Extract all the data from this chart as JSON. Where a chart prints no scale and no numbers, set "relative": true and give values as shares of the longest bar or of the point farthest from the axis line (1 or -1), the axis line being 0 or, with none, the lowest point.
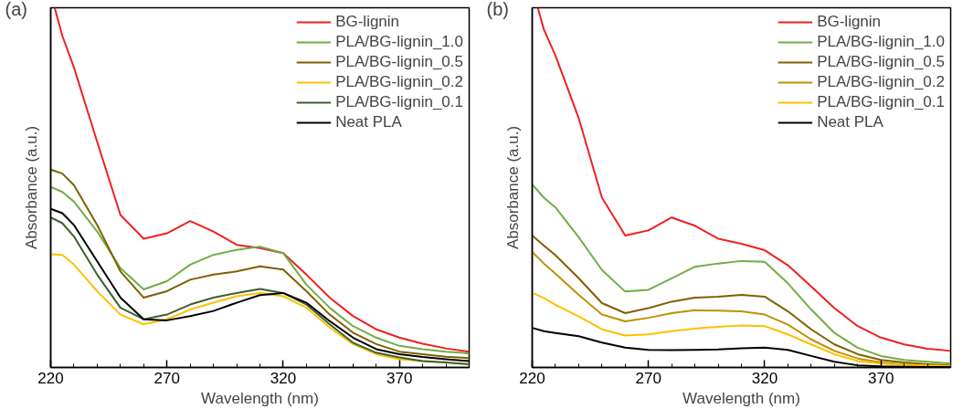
{
  "chart_data": [
    {
      "type": "line",
      "xlabel": "Wavelength (nm)",
      "ylabel": "Absorbance (a.u.)",
      "annotations": [
        "(a)"
      ],
      "relative": true,
      "tick_labels": "x",
      "grid": false,
      "legend": "top right",
      "line_style": "solid",
      "xlim": [
        220,
        400
      ],
      "xticks": [
        220,
        {
          "value": 230,
          "label": null
        },
        {
          "value": 240,
          "label": null
        },
        {
          "value": 250,
          "label": null
        },
        {
          "value": 260,
          "label": null
        },
        270,
        {
          "value": 280,
          "label": null
        },
        {
          "value": 290,
          "label": null
        },
        {
          "value": 300,
          "label": null
        },
        {
          "value": 310,
          "label": null
        },
        320,
        {
          "value": 330,
          "label": null
        },
        {
          "value": 340,
          "label": null
        },
        {
          "value": 350,
          "label": null
        },
        {
          "value": 360,
          "label": null
        },
        370,
        {
          "value": 380,
          "label": null
        },
        {
          "value": 390,
          "label": null
        }
      ],
      "x": [
        220,
        225,
        230,
        240,
        250,
        260,
        270,
        280,
        290,
        300,
        310,
        320,
        330,
        340,
        350,
        360,
        370,
        380,
        390,
        400
      ],
      "series": [
        {
          "name": "BG-lignin",
          "color": "#f02020",
          "x": [
            221.7,
            225,
            230,
            240,
            250,
            260,
            270,
            280,
            290,
            300,
            310,
            320,
            330,
            340,
            350,
            360,
            370,
            380,
            390,
            400
          ],
          "values": [
            1.0,
            0.922,
            0.834,
            0.627,
            0.424,
            0.358,
            0.373,
            0.407,
            0.378,
            0.341,
            0.332,
            0.318,
            0.258,
            0.194,
            0.143,
            0.106,
            0.083,
            0.066,
            0.053,
            0.044
          ]
        },
        {
          "name": "PLA/BG-lignin_1.0",
          "color": "#70ad47",
          "values": [
            0.502,
            0.488,
            0.461,
            0.378,
            0.276,
            0.217,
            0.24,
            0.286,
            0.313,
            0.327,
            0.336,
            0.318,
            0.23,
            0.166,
            0.115,
            0.083,
            0.06,
            0.051,
            0.044,
            0.039
          ]
        },
        {
          "name": "PLA/BG-lignin_0.5",
          "color": "#7f6000",
          "values": [
            0.55,
            0.539,
            0.507,
            0.396,
            0.267,
            0.194,
            0.212,
            0.244,
            0.258,
            0.267,
            0.281,
            0.272,
            0.212,
            0.147,
            0.097,
            0.065,
            0.044,
            0.037,
            0.03,
            0.026
          ]
        },
        {
          "name": "PLA/BG-lignin_0.2",
          "color": "#ffc000",
          "values": [
            0.315,
            0.313,
            0.286,
            0.212,
            0.147,
            0.12,
            0.134,
            0.161,
            0.18,
            0.198,
            0.207,
            0.198,
            0.166,
            0.111,
            0.065,
            0.037,
            0.023,
            0.018,
            0.014,
            0.009
          ]
        },
        {
          "name": "PLA/BG-lignin_0.1",
          "color": "#3f5f2f",
          "values": [
            0.417,
            0.401,
            0.364,
            0.258,
            0.166,
            0.134,
            0.147,
            0.175,
            0.194,
            0.207,
            0.218,
            0.207,
            0.175,
            0.12,
            0.069,
            0.041,
            0.028,
            0.018,
            0.014,
            0.009
          ]
        },
        {
          "name": "Neat PLA",
          "color": "#000000",
          "values": [
            0.441,
            0.429,
            0.396,
            0.295,
            0.194,
            0.134,
            0.131,
            0.143,
            0.157,
            0.18,
            0.201,
            0.207,
            0.18,
            0.129,
            0.083,
            0.051,
            0.037,
            0.029,
            0.023,
            0.018
          ]
        }
      ]
    },
    {
      "type": "line",
      "xlabel": "Wavelength (nm)",
      "ylabel": "Absorbance (a.u.)",
      "annotations": [
        "(b)"
      ],
      "relative": true,
      "tick_labels": "x",
      "grid": false,
      "legend": "top right",
      "line_style": "solid",
      "xlim": [
        220,
        400
      ],
      "xticks": [
        220,
        {
          "value": 230,
          "label": null
        },
        {
          "value": 240,
          "label": null
        },
        {
          "value": 250,
          "label": null
        },
        {
          "value": 260,
          "label": null
        },
        270,
        {
          "value": 280,
          "label": null
        },
        {
          "value": 290,
          "label": null
        },
        {
          "value": 300,
          "label": null
        },
        {
          "value": 310,
          "label": null
        },
        320,
        {
          "value": 330,
          "label": null
        },
        {
          "value": 340,
          "label": null
        },
        {
          "value": 350,
          "label": null
        },
        {
          "value": 360,
          "label": null
        },
        370,
        {
          "value": 380,
          "label": null
        },
        {
          "value": 390,
          "label": null
        }
      ],
      "x": [
        220,
        225,
        230,
        240,
        250,
        260,
        270,
        280,
        290,
        300,
        310,
        320,
        330,
        340,
        350,
        360,
        370,
        380,
        390,
        400
      ],
      "series": [
        {
          "name": "BG-lignin",
          "color": "#f02020",
          "x": [
            222.4,
            225,
            230,
            240,
            250,
            260,
            270,
            280,
            290,
            300,
            310,
            320,
            330,
            340,
            350,
            360,
            370,
            380,
            390,
            400
          ],
          "values": [
            1.0,
            0.94,
            0.867,
            0.693,
            0.472,
            0.367,
            0.381,
            0.417,
            0.394,
            0.358,
            0.344,
            0.326,
            0.284,
            0.225,
            0.165,
            0.115,
            0.083,
            0.064,
            0.052,
            0.046
          ]
        },
        {
          "name": "PLA/BG-lignin_1.0",
          "color": "#70ad47",
          "values": [
            0.509,
            0.472,
            0.445,
            0.362,
            0.271,
            0.211,
            0.216,
            0.248,
            0.28,
            0.289,
            0.296,
            0.294,
            0.234,
            0.161,
            0.096,
            0.055,
            0.032,
            0.021,
            0.016,
            0.011
          ]
        },
        {
          "name": "PLA/BG-lignin_0.5",
          "color": "#7f6000",
          "values": [
            0.367,
            0.339,
            0.312,
            0.248,
            0.179,
            0.151,
            0.165,
            0.183,
            0.194,
            0.197,
            0.202,
            0.197,
            0.156,
            0.106,
            0.064,
            0.037,
            0.021,
            0.014,
            0.009,
            0.006
          ]
        },
        {
          "name": "PLA/BG-lignin_0.2",
          "color": "#bf9000",
          "values": [
            0.321,
            0.289,
            0.261,
            0.202,
            0.147,
            0.128,
            0.138,
            0.151,
            0.159,
            0.158,
            0.156,
            0.147,
            0.119,
            0.078,
            0.046,
            0.025,
            0.014,
            0.009,
            0.006,
            0.005
          ]
        },
        {
          "name": "PLA/BG-lignin_0.1",
          "color": "#ffc000",
          "values": [
            0.208,
            0.193,
            0.174,
            0.142,
            0.106,
            0.089,
            0.092,
            0.101,
            0.108,
            0.113,
            0.117,
            0.115,
            0.092,
            0.064,
            0.037,
            0.018,
            0.011,
            0.007,
            0.005,
            0.003
          ]
        },
        {
          "name": "Neat PLA",
          "color": "#000000",
          "values": [
            0.11,
            0.101,
            0.096,
            0.087,
            0.069,
            0.055,
            0.049,
            0.048,
            0.049,
            0.05,
            0.053,
            0.055,
            0.049,
            0.032,
            0.016,
            0.006,
            0.003,
            0.002,
            0.001,
            0.001
          ]
        }
      ]
    }
  ]
}
